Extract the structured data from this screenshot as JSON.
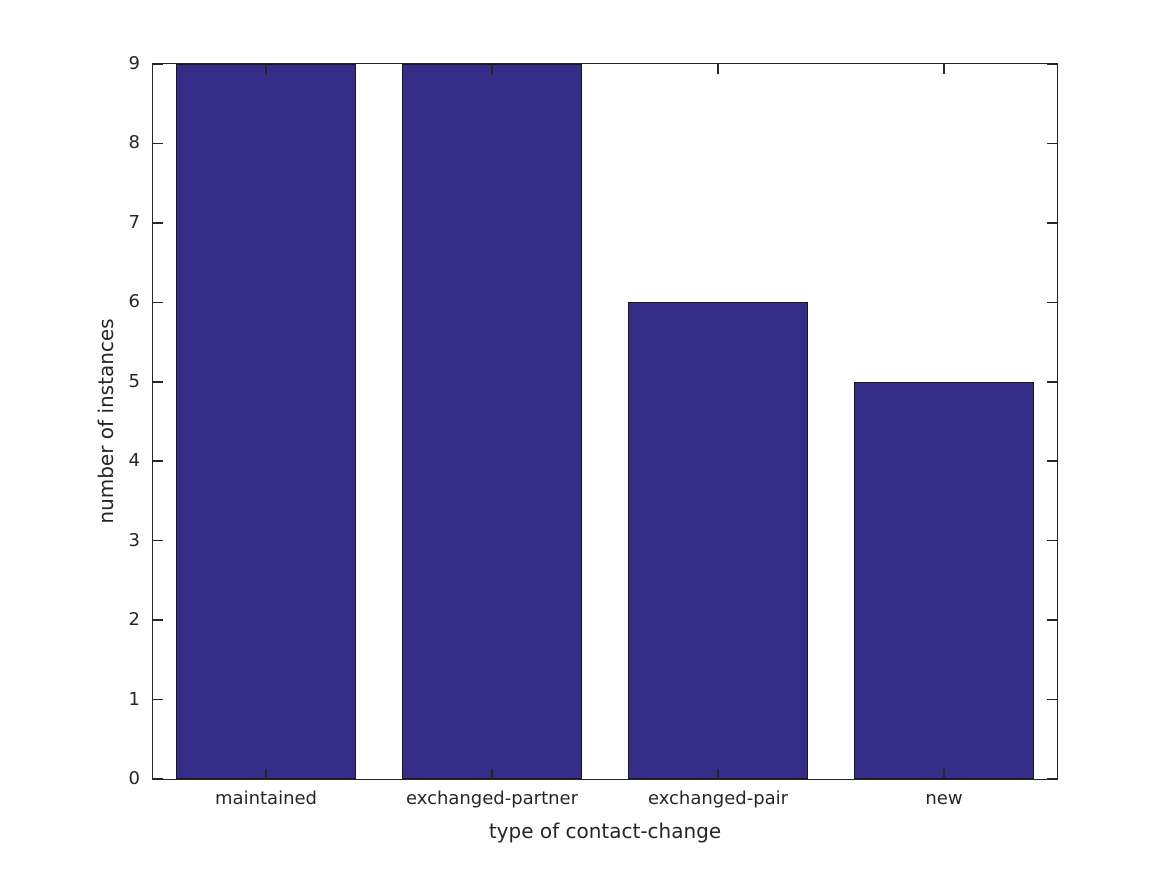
{
  "chart_data": {
    "type": "bar",
    "title": "",
    "categories": [
      "maintained",
      "exchanged-partner",
      "exchanged-pair",
      "new"
    ],
    "values": [
      9,
      9,
      6,
      5
    ],
    "xlabel": "type of contact-change",
    "ylabel": "number of instances",
    "ylim": [
      0,
      9
    ],
    "yticks": [
      0,
      1,
      2,
      3,
      4,
      5,
      6,
      7,
      8,
      9
    ],
    "bar_width_fraction": 0.8,
    "grid": false,
    "legend_position": "none",
    "colors": {
      "bar_fill": "#352d87",
      "bar_edge": "#1a1a1a",
      "axis": "#262626",
      "text": "#262626",
      "background": "#ffffff"
    }
  }
}
